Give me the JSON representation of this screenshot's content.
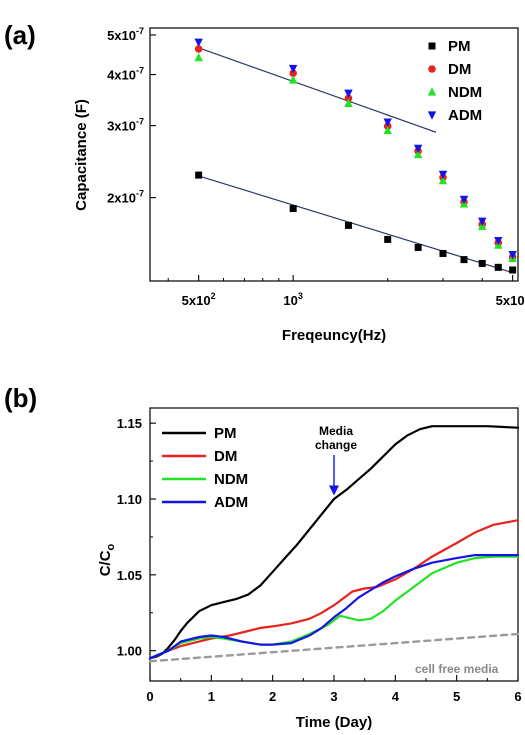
{
  "chart_data": [
    {
      "type": "scatter",
      "panel_label": "(a)",
      "xlabel": "Freqeuncy(Hz)",
      "ylabel": "Capacitance (F)",
      "x_scale": "log",
      "y_scale": "log",
      "xlim": [
        350,
        5200
      ],
      "ylim": [
        1.25e-07,
        5.2e-07
      ],
      "x_ticks": [
        {
          "value": 500,
          "label": "5x10",
          "exp": "2"
        },
        {
          "value": 1000,
          "label": "10",
          "exp": "3"
        },
        {
          "value": 5000,
          "label": "5x10",
          "exp": "3"
        }
      ],
      "y_ticks": [
        {
          "value": 2e-07,
          "label": "2x10",
          "exp": "-7"
        },
        {
          "value": 3e-07,
          "label": "3x10",
          "exp": "-7"
        },
        {
          "value": 4e-07,
          "label": "4x10",
          "exp": "-7"
        },
        {
          "value": 5e-07,
          "label": "5x10",
          "exp": "-7"
        }
      ],
      "legend_position": "top-right",
      "series": [
        {
          "name": "PM",
          "marker": "square",
          "color": "#000000",
          "x": [
            500,
            1000,
            1500,
            2000,
            2500,
            3000,
            3500,
            4000,
            4500,
            5000
          ],
          "y": [
            2.27e-07,
            1.88e-07,
            1.71e-07,
            1.58e-07,
            1.51e-07,
            1.46e-07,
            1.41e-07,
            1.38e-07,
            1.35e-07,
            1.33e-07
          ]
        },
        {
          "name": "DM",
          "marker": "circle",
          "color": "#e8231d",
          "x": [
            500,
            1000,
            1500,
            2000,
            2500,
            3000,
            3500,
            4000,
            4500,
            5000
          ],
          "y": [
            4.62e-07,
            4.03e-07,
            3.5e-07,
            2.99e-07,
            2.6e-07,
            2.24e-07,
            1.95e-07,
            1.72e-07,
            1.55e-07,
            1.43e-07
          ]
        },
        {
          "name": "NDM",
          "marker": "triangle-up",
          "color": "#22e322",
          "x": [
            500,
            1000,
            1500,
            2000,
            2500,
            3000,
            3500,
            4000,
            4500,
            5000
          ],
          "y": [
            4.4e-07,
            3.88e-07,
            3.4e-07,
            2.92e-07,
            2.55e-07,
            2.2e-07,
            1.93e-07,
            1.7e-07,
            1.53e-07,
            1.42e-07
          ]
        },
        {
          "name": "ADM",
          "marker": "triangle-down",
          "color": "#1414e6",
          "x": [
            500,
            1000,
            1500,
            2000,
            2500,
            3000,
            3500,
            4000,
            4500,
            5000
          ],
          "y": [
            4.8e-07,
            4.14e-07,
            3.6e-07,
            3.06e-07,
            2.64e-07,
            2.28e-07,
            1.98e-07,
            1.75e-07,
            1.57e-07,
            1.45e-07
          ]
        }
      ],
      "fit_lines": [
        {
          "x": [
            500,
            2850
          ],
          "y": [
            4.65e-07,
            2.89e-07
          ],
          "color": "#2b3a67"
        },
        {
          "x": [
            500,
            5000
          ],
          "y": [
            2.26e-07,
            1.31e-07
          ],
          "color": "#2b3a67"
        }
      ]
    },
    {
      "type": "line",
      "panel_label": "(b)",
      "xlabel": "Time  (Day)",
      "ylabel": "C/C",
      "ylabel_sub": "o",
      "xlim": [
        0,
        6
      ],
      "ylim": [
        0.98,
        1.16
      ],
      "x_ticks": [
        0,
        1,
        2,
        3,
        4,
        5,
        6
      ],
      "y_ticks": [
        {
          "value": 1.0,
          "label": "1.00"
        },
        {
          "value": 1.05,
          "label": "1.05"
        },
        {
          "value": 1.1,
          "label": "1.10"
        },
        {
          "value": 1.15,
          "label": "1.15"
        }
      ],
      "legend_position": "top-left",
      "series": [
        {
          "name": "PM",
          "color": "#000000",
          "x": [
            0,
            0.1,
            0.2,
            0.3,
            0.4,
            0.5,
            0.6,
            0.7,
            0.8,
            0.9,
            1.0,
            1.2,
            1.4,
            1.6,
            1.8,
            2.0,
            2.2,
            2.4,
            2.6,
            2.8,
            3.0,
            3.2,
            3.4,
            3.6,
            3.8,
            4.0,
            4.2,
            4.4,
            4.6,
            4.8,
            5.0,
            5.5,
            6.0
          ],
          "y": [
            0.995,
            0.996,
            0.998,
            1.002,
            1.007,
            1.013,
            1.018,
            1.022,
            1.026,
            1.028,
            1.03,
            1.032,
            1.034,
            1.037,
            1.043,
            1.052,
            1.061,
            1.07,
            1.08,
            1.09,
            1.1,
            1.106,
            1.113,
            1.12,
            1.128,
            1.136,
            1.142,
            1.146,
            1.148,
            1.148,
            1.148,
            1.148,
            1.147
          ]
        },
        {
          "name": "DM",
          "color": "#e8231d",
          "x": [
            0,
            0.3,
            0.5,
            0.8,
            1.0,
            1.3,
            1.6,
            1.8,
            2.0,
            2.3,
            2.6,
            2.8,
            3.0,
            3.2,
            3.3,
            3.5,
            3.7,
            4.0,
            4.3,
            4.6,
            5.0,
            5.3,
            5.6,
            6.0
          ],
          "y": [
            0.995,
            1.0,
            1.003,
            1.006,
            1.008,
            1.01,
            1.013,
            1.015,
            1.016,
            1.018,
            1.021,
            1.025,
            1.03,
            1.036,
            1.039,
            1.041,
            1.042,
            1.047,
            1.054,
            1.062,
            1.071,
            1.078,
            1.083,
            1.086
          ]
        },
        {
          "name": "NDM",
          "color": "#22e322",
          "x": [
            0,
            0.3,
            0.5,
            0.8,
            1.0,
            1.2,
            1.5,
            1.8,
            2.0,
            2.3,
            2.6,
            2.9,
            3.0,
            3.1,
            3.2,
            3.4,
            3.6,
            3.8,
            4.0,
            4.3,
            4.6,
            5.0,
            5.3,
            5.6,
            6.0
          ],
          "y": [
            0.995,
            1.0,
            1.005,
            1.008,
            1.009,
            1.008,
            1.006,
            1.004,
            1.004,
            1.006,
            1.011,
            1.017,
            1.02,
            1.023,
            1.022,
            1.02,
            1.021,
            1.026,
            1.033,
            1.042,
            1.051,
            1.058,
            1.061,
            1.062,
            1.062
          ]
        },
        {
          "name": "ADM",
          "color": "#1414e6",
          "x": [
            0,
            0.3,
            0.5,
            0.8,
            1.0,
            1.2,
            1.5,
            1.8,
            2.0,
            2.3,
            2.6,
            2.8,
            3.0,
            3.2,
            3.4,
            3.6,
            3.8,
            4.0,
            4.3,
            4.6,
            5.0,
            5.3,
            5.6,
            6.0
          ],
          "y": [
            0.995,
            1.0,
            1.006,
            1.009,
            1.01,
            1.009,
            1.006,
            1.004,
            1.004,
            1.005,
            1.01,
            1.015,
            1.022,
            1.028,
            1.035,
            1.04,
            1.045,
            1.049,
            1.054,
            1.058,
            1.061,
            1.063,
            1.063,
            1.063
          ]
        },
        {
          "name": "cell free media",
          "color": "#9a9a9a",
          "dashed": true,
          "x": [
            0,
            6.0
          ],
          "y": [
            0.993,
            1.011
          ]
        }
      ],
      "annotations": [
        {
          "text_lines": [
            "Media",
            "change"
          ],
          "arrow_to": {
            "x": 3.0,
            "y": 1.101
          }
        },
        {
          "text": "cell free media",
          "at": {
            "x": 5.0,
            "y": 0.988
          }
        }
      ]
    }
  ]
}
